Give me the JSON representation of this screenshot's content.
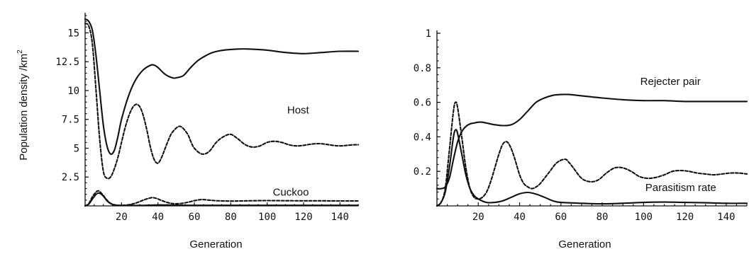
{
  "chart_data": [
    {
      "type": "line",
      "title": "",
      "xlabel": "Generation",
      "ylabel": "Population density  /km",
      "ylabel_superscript": "2",
      "xlim": [
        0,
        150
      ],
      "ylim": [
        0,
        16.5
      ],
      "xticks": [
        20,
        40,
        60,
        80,
        100,
        120,
        140
      ],
      "yticks": [
        2.5,
        5,
        7.5,
        10,
        12.5,
        15
      ],
      "yticklabels": [
        "2.5",
        "5",
        "7.5",
        "10",
        "12.5",
        "15"
      ],
      "grid": false,
      "annotations": [
        {
          "text": "Host",
          "x": 117,
          "y": 8.0
        },
        {
          "text": "Cuckoo",
          "x": 113,
          "y": 0.9
        }
      ],
      "series": [
        {
          "style": "solid",
          "x": [
            0,
            2,
            4,
            6,
            8,
            10,
            12,
            14,
            16,
            18,
            20,
            24,
            28,
            32,
            36,
            38,
            40,
            44,
            48,
            50,
            54,
            58,
            62,
            66,
            70,
            76,
            84,
            90,
            100,
            110,
            120,
            130,
            140,
            150
          ],
          "y": [
            16.2,
            16,
            15.2,
            13,
            10,
            7,
            5.2,
            4.5,
            4.8,
            6,
            7.5,
            9.6,
            11,
            11.8,
            12.2,
            12.2,
            12,
            11.4,
            11.1,
            11.1,
            11.3,
            12,
            12.6,
            13,
            13.3,
            13.5,
            13.6,
            13.6,
            13.5,
            13.3,
            13.2,
            13.3,
            13.4,
            13.4
          ]
        },
        {
          "style": "dashed",
          "x": [
            0,
            2,
            4,
            6,
            8,
            10,
            12,
            14,
            16,
            18,
            20,
            22,
            24,
            26,
            28,
            30,
            32,
            34,
            36,
            38,
            40,
            42,
            44,
            46,
            48,
            52,
            56,
            58,
            60,
            64,
            68,
            72,
            76,
            80,
            84,
            88,
            92,
            96,
            100,
            104,
            108,
            112,
            116,
            120,
            124,
            128,
            132,
            136,
            140,
            144,
            148,
            150
          ],
          "y": [
            15.8,
            15.6,
            14,
            10,
            5.8,
            3,
            2.4,
            2.5,
            3.2,
            4.2,
            5.5,
            6.8,
            7.8,
            8.5,
            8.8,
            8.6,
            7.8,
            6.5,
            5,
            4,
            3.7,
            4.2,
            5,
            5.8,
            6.4,
            6.9,
            6.3,
            5.6,
            5,
            4.5,
            4.7,
            5.5,
            6,
            6.2,
            5.8,
            5.3,
            5.1,
            5.2,
            5.5,
            5.6,
            5.5,
            5.3,
            5.2,
            5.25,
            5.35,
            5.4,
            5.35,
            5.25,
            5.2,
            5.25,
            5.3,
            5.3
          ]
        },
        {
          "style": "solid",
          "x": [
            0,
            2,
            4,
            6,
            7,
            8,
            10,
            12,
            14,
            16,
            18,
            20,
            30,
            40,
            50,
            60,
            80,
            100,
            120,
            140,
            150
          ],
          "y": [
            0,
            0.15,
            0.6,
            1,
            1.1,
            1.1,
            0.85,
            0.45,
            0.2,
            0.08,
            0.04,
            0.03,
            0.04,
            0.08,
            0.06,
            0.05,
            0.05,
            0.05,
            0.05,
            0.05,
            0.05
          ]
        },
        {
          "style": "dashed",
          "x": [
            0,
            2,
            4,
            6,
            7,
            8,
            10,
            12,
            14,
            16,
            18,
            20,
            24,
            28,
            32,
            36,
            38,
            40,
            44,
            48,
            52,
            56,
            60,
            64,
            68,
            72,
            80,
            90,
            100,
            110,
            120,
            130,
            140,
            150
          ],
          "y": [
            0,
            0.2,
            0.8,
            1.2,
            1.3,
            1.25,
            0.9,
            0.5,
            0.22,
            0.1,
            0.06,
            0.05,
            0.1,
            0.25,
            0.5,
            0.7,
            0.7,
            0.6,
            0.35,
            0.2,
            0.2,
            0.3,
            0.45,
            0.55,
            0.5,
            0.45,
            0.42,
            0.44,
            0.46,
            0.45,
            0.44,
            0.44,
            0.43,
            0.43
          ]
        }
      ]
    },
    {
      "type": "line",
      "title": "",
      "xlabel": "Generation",
      "ylabel": "",
      "xlim": [
        0,
        150
      ],
      "ylim": [
        0,
        1
      ],
      "xticks": [
        20,
        40,
        60,
        80,
        100,
        120,
        140
      ],
      "yticks": [
        0.2,
        0.4,
        0.6,
        0.8,
        1
      ],
      "yticklabels": [
        "0.2",
        "0.4",
        "0.6",
        "0.8",
        "1"
      ],
      "grid": false,
      "annotations": [
        {
          "text": "Rejecter pair",
          "x": 113,
          "y": 0.7
        },
        {
          "text": "Parasitism rate",
          "x": 118,
          "y": 0.087
        }
      ],
      "series": [
        {
          "style": "solid",
          "x": [
            0,
            2,
            4,
            6,
            8,
            10,
            12,
            14,
            16,
            18,
            20,
            22,
            24,
            28,
            32,
            36,
            40,
            44,
            48,
            52,
            56,
            60,
            64,
            68,
            72,
            80,
            90,
            100,
            110,
            120,
            130,
            140,
            150
          ],
          "y": [
            0.1,
            0.1,
            0.11,
            0.16,
            0.27,
            0.37,
            0.43,
            0.46,
            0.475,
            0.48,
            0.485,
            0.485,
            0.48,
            0.47,
            0.465,
            0.47,
            0.5,
            0.55,
            0.6,
            0.625,
            0.64,
            0.645,
            0.645,
            0.64,
            0.635,
            0.625,
            0.615,
            0.61,
            0.61,
            0.605,
            0.605,
            0.605,
            0.605
          ]
        },
        {
          "style": "solid",
          "x": [
            0,
            2,
            4,
            6,
            8,
            9,
            10,
            12,
            14,
            16,
            18,
            20,
            24,
            28,
            32,
            36,
            40,
            44,
            48,
            52,
            56,
            60,
            70,
            80,
            90,
            100,
            110,
            120,
            130,
            140,
            150
          ],
          "y": [
            0,
            0.02,
            0.08,
            0.22,
            0.4,
            0.44,
            0.42,
            0.3,
            0.18,
            0.1,
            0.06,
            0.04,
            0.02,
            0.02,
            0.03,
            0.05,
            0.07,
            0.078,
            0.068,
            0.05,
            0.03,
            0.02,
            0.015,
            0.012,
            0.015,
            0.02,
            0.022,
            0.02,
            0.018,
            0.015,
            0.015
          ]
        },
        {
          "style": "dashed",
          "x": [
            0,
            2,
            4,
            6,
            8,
            9,
            10,
            12,
            14,
            16,
            18,
            20,
            22,
            24,
            26,
            28,
            30,
            32,
            34,
            36,
            38,
            40,
            42,
            44,
            46,
            48,
            50,
            54,
            58,
            62,
            64,
            66,
            70,
            74,
            78,
            82,
            86,
            90,
            94,
            98,
            102,
            106,
            110,
            114,
            118,
            122,
            126,
            130,
            134,
            138,
            142,
            146,
            150
          ],
          "y": [
            0,
            0.02,
            0.1,
            0.32,
            0.55,
            0.6,
            0.57,
            0.4,
            0.22,
            0.1,
            0.05,
            0.04,
            0.05,
            0.08,
            0.14,
            0.22,
            0.3,
            0.36,
            0.37,
            0.33,
            0.26,
            0.18,
            0.13,
            0.11,
            0.1,
            0.11,
            0.13,
            0.19,
            0.25,
            0.27,
            0.25,
            0.22,
            0.16,
            0.14,
            0.15,
            0.19,
            0.22,
            0.22,
            0.2,
            0.17,
            0.16,
            0.165,
            0.18,
            0.2,
            0.205,
            0.2,
            0.19,
            0.185,
            0.18,
            0.185,
            0.19,
            0.19,
            0.185
          ]
        }
      ]
    }
  ]
}
